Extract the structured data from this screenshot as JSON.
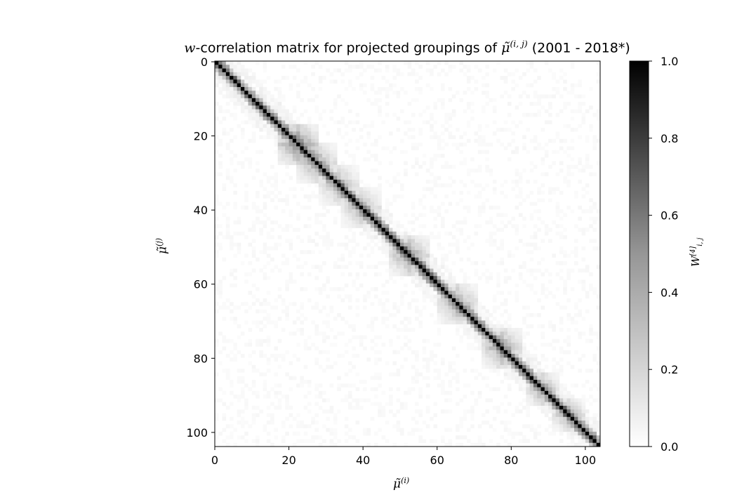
{
  "chart_data": {
    "type": "heatmap",
    "title_prefix": "w",
    "title_mid": "-correlation matrix for projected groupings of ",
    "title_sym": "μ̃",
    "title_sup": "(i, j)",
    "title_suffix": " (2001 - 2018*)",
    "xlabel_sym": "μ̃",
    "xlabel_sup": "(i)",
    "ylabel_sym": "μ̃",
    "ylabel_sup": "(j)",
    "colorbar_label_sym": "W",
    "colorbar_label_sup": "[4]",
    "colorbar_label_sub": "i, j",
    "matrix_size": 104,
    "x_ticks": [
      0,
      20,
      40,
      60,
      80,
      100
    ],
    "y_ticks": [
      0,
      20,
      40,
      60,
      80,
      100
    ],
    "colorbar_ticks": [
      0.0,
      0.2,
      0.4,
      0.6,
      0.8,
      1.0
    ],
    "colorbar_tick_labels": [
      "0.0",
      "0.2",
      "0.4",
      "0.6",
      "0.8",
      "1.0"
    ],
    "value_range": [
      0.0,
      1.0
    ],
    "colormap": "Greys",
    "low_color": "#ffffff",
    "high_color": "#000000",
    "description_pattern": "diagonal = 1.0, strong near-diagonal block clusters, faint off-diagonal noise",
    "diagonal_value": 1.0,
    "clusters": [
      {
        "center": 22,
        "width": 3,
        "strength": 0.75
      },
      {
        "center": 27,
        "width": 3,
        "strength": 0.55
      },
      {
        "center": 33,
        "width": 3,
        "strength": 0.45
      },
      {
        "center": 39,
        "width": 3,
        "strength": 0.45
      },
      {
        "center": 52,
        "width": 3,
        "strength": 0.6
      },
      {
        "center": 65,
        "width": 3,
        "strength": 0.55
      },
      {
        "center": 77,
        "width": 3,
        "strength": 0.6
      },
      {
        "center": 88,
        "width": 2,
        "strength": 0.65
      },
      {
        "center": 95,
        "width": 2,
        "strength": 0.6
      }
    ]
  }
}
